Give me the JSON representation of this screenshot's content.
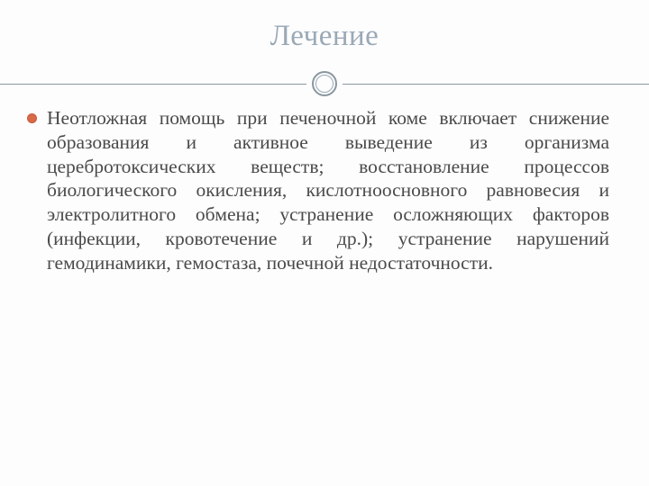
{
  "colors": {
    "title": "#9aa9b6",
    "rule": "#8a989f",
    "ring_outer": "#8a989f",
    "ring_inner": "#9aa9b6",
    "bullet_fill": "#d86a4a",
    "bullet_border": "#c85a3a",
    "body_text": "#4a4a4a",
    "background": "#fdfdfd"
  },
  "layout": {
    "title_fontsize": 33,
    "body_fontsize": 21.5,
    "body_lineheight": 1.245,
    "ring_outer_d": 28,
    "ring_outer_border": 2,
    "ring_inner_d": 20,
    "ring_inner_border": 1.5,
    "bullet_d": 11,
    "bullet_border_w": 1.5
  },
  "title": "Лечение",
  "body": {
    "items": [
      {
        "text": "Неотложная помощь при печеночной коме включает снижение образования и активное выведение из организма церебротоксических веществ; восстановление процессов биологического окисления, кислотноосновного равновесия и электролитного обмена; устранение осложняющих факторов (инфекции, кровотечение и др.); устранение нарушений гемодинамики, гемостаза, почечной недостаточности."
      }
    ]
  }
}
